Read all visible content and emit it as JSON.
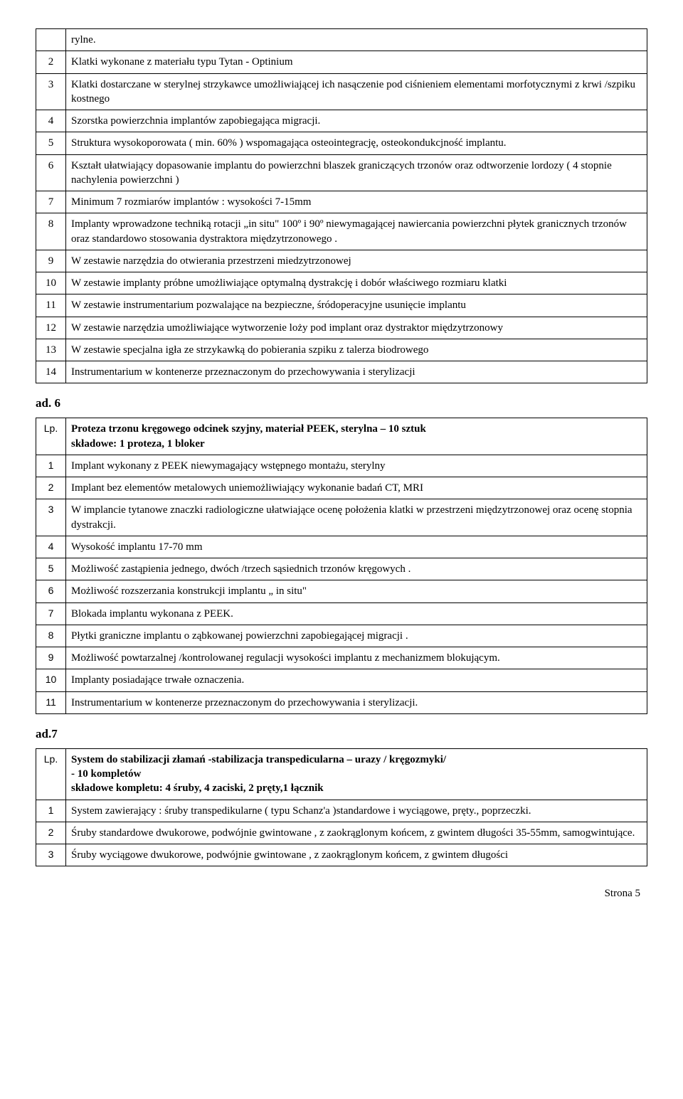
{
  "table1": {
    "rows": [
      {
        "n": "",
        "text": "rylne."
      },
      {
        "n": "2",
        "text": "Klatki wykonane z materiału typu Tytan - Optinium"
      },
      {
        "n": "3",
        "text": "Klatki dostarczane w sterylnej strzykawce umożliwiającej ich nasączenie pod ciśnieniem elementami morfotycznymi z krwi /szpiku kostnego"
      },
      {
        "n": "4",
        "text": "Szorstka powierzchnia implantów zapobiegająca migracji."
      },
      {
        "n": "5",
        "text": "Struktura wysokoporowata  ( min. 60% ) wspomagająca osteointegrację, osteokondukcjność implantu."
      },
      {
        "n": "6",
        "text": "Kształt ułatwiający dopasowanie implantu do powierzchni blaszek graniczących trzonów oraz odtworzenie lordozy ( 4 stopnie nachylenia powierzchni )"
      },
      {
        "n": "7",
        "text": "Minimum 7 rozmiarów implantów : wysokości 7-15mm"
      },
      {
        "n": "8",
        "text": "Implanty wprowadzone techniką rotacji „in situ\" 100º i 90º niewymagającej nawiercania powierzchni płytek granicznych trzonów oraz standardowo stosowania dystraktora międzytrzonowego ."
      },
      {
        "n": "9",
        "text": "W zestawie narzędzia do otwierania przestrzeni miedzytrzonowej"
      },
      {
        "n": "10",
        "text": "W zestawie implanty próbne umożliwiające optymalną dystrakcję i dobór właściwego rozmiaru klatki"
      },
      {
        "n": "11",
        "text": "W zestawie instrumentarium pozwalające na bezpieczne, śródoperacyjne usunięcie implantu"
      },
      {
        "n": "12",
        "text": "W zestawie narzędzia umożliwiające wytworzenie loży pod implant oraz dystraktor międzytrzonowy"
      },
      {
        "n": "13",
        "text": "W zestawie specjalna igła ze strzykawką do pobierania szpiku z talerza biodrowego"
      },
      {
        "n": "14",
        "text": "Instrumentarium w kontenerze przeznaczonym do przechowywania i sterylizacji"
      }
    ]
  },
  "section6": {
    "heading": "ad. 6",
    "lp": "Lp.",
    "title": "Proteza trzonu kręgowego odcinek szyjny, materiał PEEK, sterylna – 10 sztuk",
    "subtitle": "składowe: 1 proteza, 1 bloker",
    "rows": [
      {
        "n": "1",
        "text": "Implant wykonany z PEEK niewymagający wstępnego montażu, sterylny"
      },
      {
        "n": "2",
        "text": "Implant bez elementów metalowych uniemożliwiający wykonanie badań CT, MRI"
      },
      {
        "n": "3",
        "text": "W implancie tytanowe znaczki radiologiczne ułatwiające ocenę położenia klatki w przestrzeni międzytrzonowej oraz ocenę stopnia dystrakcji."
      },
      {
        "n": "4",
        "text": "Wysokość implantu 17-70 mm"
      },
      {
        "n": "5",
        "text": "Możliwość zastąpienia jednego, dwóch /trzech sąsiednich trzonów kręgowych ."
      },
      {
        "n": "6",
        "text": "Możliwość rozszerzania konstrukcji implantu „ in situ\""
      },
      {
        "n": "7",
        "text": "Blokada implantu wykonana z PEEK."
      },
      {
        "n": "8",
        "text": "Płytki graniczne implantu o ząbkowanej powierzchni zapobiegającej migracji ."
      },
      {
        "n": "9",
        "text": "Możliwość powtarzalnej /kontrolowanej regulacji wysokości implantu z mechanizmem blokującym."
      },
      {
        "n": "10",
        "text": "Implanty posiadające trwałe oznaczenia."
      },
      {
        "n": "11",
        "text": "Instrumentarium w kontenerze przeznaczonym do przechowywania i sterylizacji."
      }
    ]
  },
  "section7": {
    "heading": "ad.7",
    "lp": "Lp.",
    "title": "System do stabilizacji złamań -stabilizacja transpedicularna – urazy / kręgozmyki/",
    "line2": "- 10 kompletów",
    "line3": "składowe kompletu: 4 śruby, 4 zaciski, 2 pręty,1 łącznik",
    "rows": [
      {
        "n": "1",
        "text": "System zawierający : śruby transpedikularne  ( typu Schanz'a )standardowe i wyciągowe, pręty., poprzeczki."
      },
      {
        "n": "2",
        "text": "Śruby standardowe dwukorowe, podwójnie gwintowane , z zaokrąglonym końcem, z gwintem długości 35-55mm, samogwintujące."
      },
      {
        "n": "3",
        "text": "Śruby wyciągowe dwukorowe, podwójnie gwintowane , z zaokrąglonym końcem, z gwintem długości"
      }
    ]
  },
  "footer": "Strona 5"
}
